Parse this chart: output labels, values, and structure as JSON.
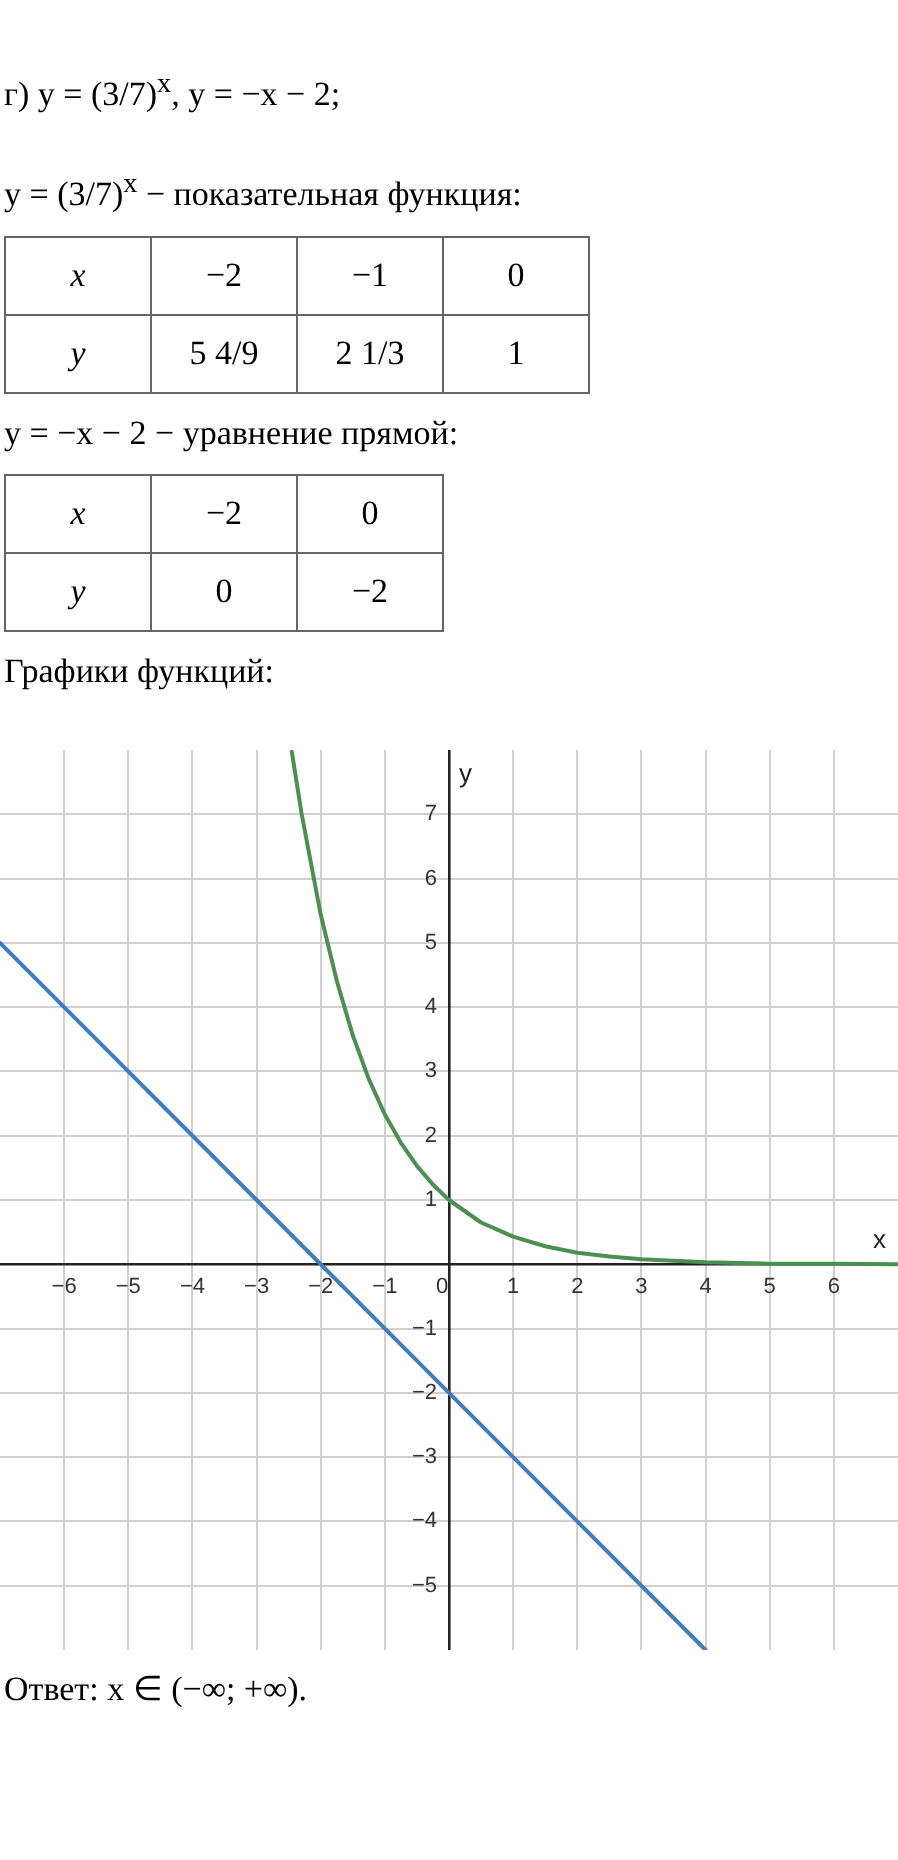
{
  "chart_data": {
    "type": "line",
    "title": "Графики функций:",
    "xlabel": "x",
    "ylabel": "y",
    "xlim": [
      -7,
      7
    ],
    "ylim": [
      -6,
      8
    ],
    "xticks": [
      -6,
      -5,
      -4,
      -3,
      -2,
      -1,
      0,
      1,
      2,
      3,
      4,
      5,
      6
    ],
    "yticks": [
      -5,
      -4,
      -3,
      -2,
      -1,
      {
        "value": 0,
        "label": null
      },
      1,
      2,
      3,
      4,
      5,
      6,
      7
    ],
    "grid": true,
    "legend": false,
    "marker": "none",
    "line_style": "solid",
    "series": [
      {
        "color": "#4a9150",
        "x": [
          -2.45,
          -2.3,
          -2,
          -1.75,
          -1.5,
          -1.25,
          -1,
          -0.75,
          -0.5,
          -0.25,
          0,
          0.5,
          1,
          1.5,
          2,
          2.5,
          3,
          4,
          5,
          6,
          7
        ],
        "values": [
          7.97,
          7.02,
          5.44,
          4.41,
          3.56,
          2.88,
          2.33,
          1.89,
          1.53,
          1.24,
          1,
          0.65,
          0.43,
          0.28,
          0.18,
          0.12,
          0.08,
          0.03,
          0.01,
          0.01,
          0
        ]
      },
      {
        "color": "#3f7cc4",
        "x": [
          -7,
          4
        ],
        "values": [
          5,
          -6
        ]
      }
    ],
    "annotations": [
      "г) y = (3/7)$^{x}$,  y = −x − 2;",
      "y = (3/7)$^{x}$ − показательная функция:",
      "x",
      "−2",
      "−1",
      "0",
      "y",
      "5 4/9",
      "2 1/3",
      "1",
      "y = −x − 2 − уравнение прямой:",
      "x",
      "−2",
      "0",
      "y",
      "0",
      "−2",
      "Ответ:  x ∈ (−∞; +∞)."
    ]
  }
}
